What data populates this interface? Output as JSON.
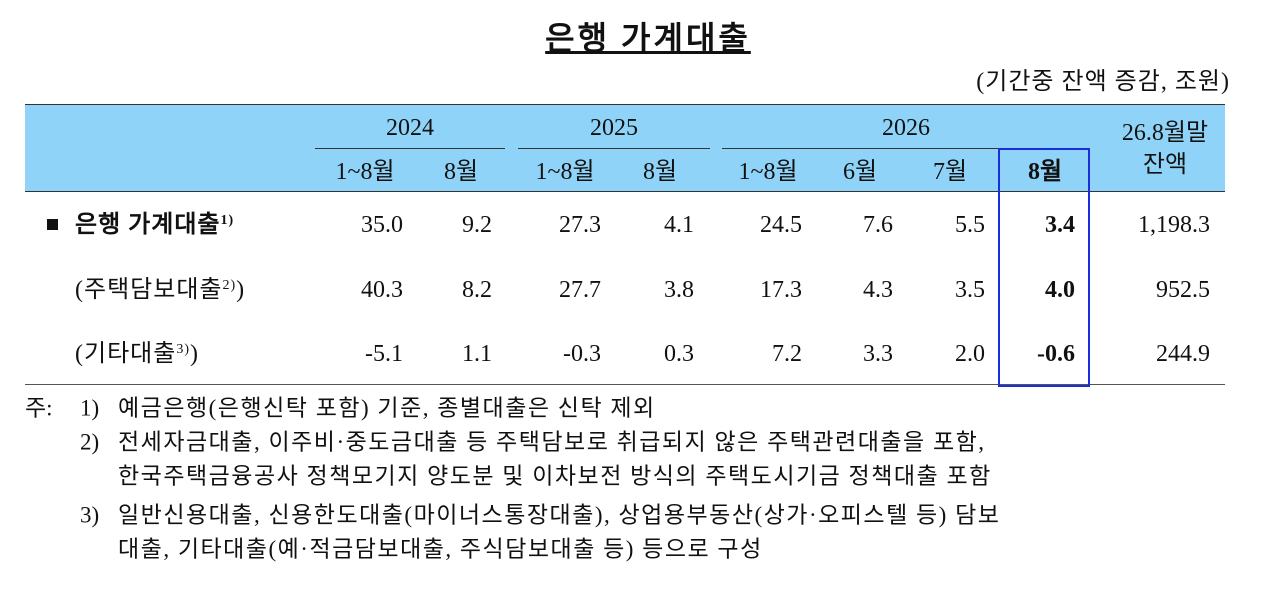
{
  "header": {
    "title": "은행 가계대출",
    "unit": "(기간중 잔액 증감, 조원)"
  },
  "table": {
    "years": [
      "2024",
      "2025",
      "2026"
    ],
    "last_column": [
      "26.8월말",
      "잔액"
    ],
    "periods": [
      "1~8월",
      "8월",
      "1~8월",
      "8월",
      "1~8월",
      "6월",
      "7월",
      "8월"
    ],
    "rows": [
      {
        "label": "은행 가계대출",
        "note": "1)",
        "values": [
          "35.0",
          "9.2",
          "27.3",
          "4.1",
          "24.5",
          "7.6",
          "5.5",
          "3.4",
          "1,198.3"
        ]
      },
      {
        "open": "(",
        "label": "주택담보대출",
        "note": "2)",
        "close": ")",
        "values": [
          "40.3",
          "8.2",
          "27.7",
          "3.8",
          "17.3",
          "4.3",
          "3.5",
          "4.0",
          "952.5"
        ]
      },
      {
        "open": "(",
        "label": "기타대출",
        "note": "3)",
        "close": ")",
        "values": [
          "-5.1",
          "1.1",
          "-0.3",
          "0.3",
          "7.2",
          "3.3",
          "2.0",
          "-0.6",
          "244.9"
        ]
      }
    ]
  },
  "notes": {
    "prefix": "주:",
    "items": [
      {
        "marker": "1)",
        "lines": [
          "예금은행(은행신탁 포함) 기준, 종별대출은 신탁 제외"
        ]
      },
      {
        "marker": "2)",
        "lines": [
          "전세자금대출, 이주비·중도금대출 등 주택담보로 취급되지 않은 주택관련대출을 포함,",
          "한국주택금융공사 정책모기지 양도분 및 이차보전 방식의 주택도시기금 정책대출 포함"
        ]
      },
      {
        "marker": "3)",
        "lines": [
          "일반신용대출, 신용한도대출(마이너스통장대출), 상업용부동산(상가·오피스텔 등) 담보",
          "대출, 기타대출(예·적금담보대출, 주식담보대출 등) 등으로 구성"
        ]
      }
    ]
  }
}
